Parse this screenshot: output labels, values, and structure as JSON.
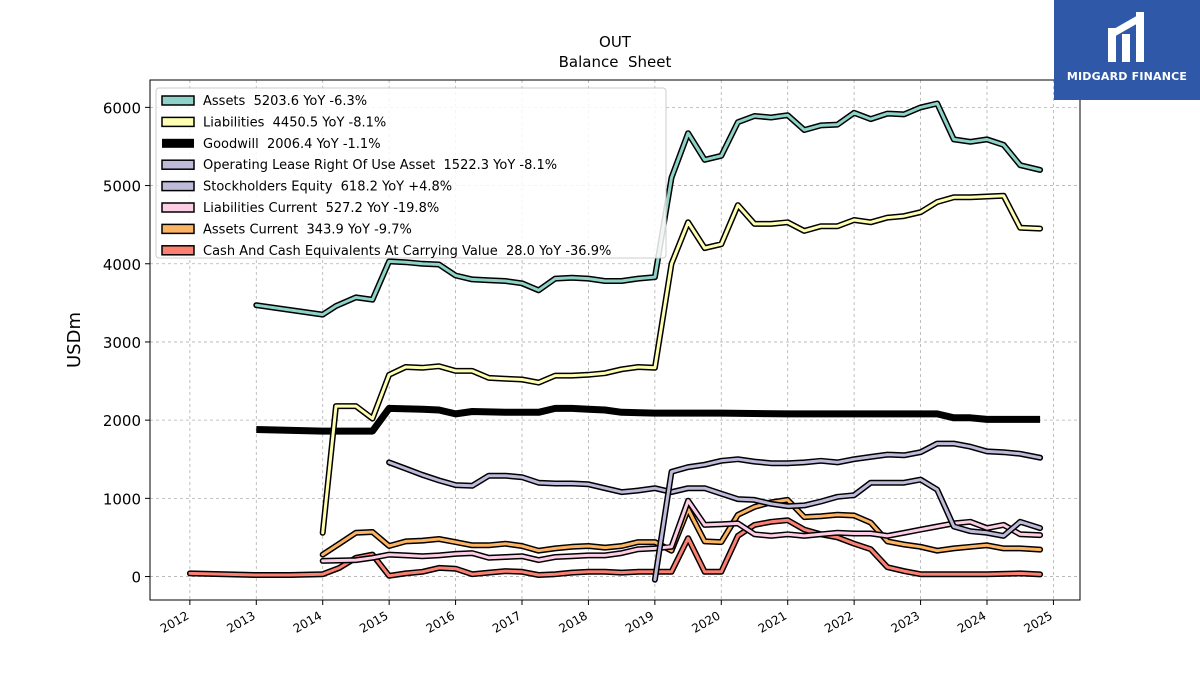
{
  "logo": {
    "text": "MIDGARD FINANCE"
  },
  "chart_data": {
    "type": "line",
    "title": "OUT",
    "subtitle": "Balance  Sheet",
    "ylabel": "USDm",
    "xlabel": "",
    "ylim": [
      -300,
      6350
    ],
    "xlim": [
      2011.4,
      2025.4
    ],
    "yticks": [
      0,
      1000,
      2000,
      3000,
      4000,
      5000,
      6000
    ],
    "xticks": [
      2012,
      2013,
      2014,
      2015,
      2016,
      2017,
      2018,
      2019,
      2020,
      2021,
      2022,
      2023,
      2024,
      2025
    ],
    "grid": true,
    "legend_position": "top-left",
    "series": [
      {
        "name": "Assets  5203.6 YoY -6.3%",
        "color": "#8dd3c7",
        "x": [
          2013.0,
          2014.0,
          2014.2,
          2014.5,
          2014.75,
          2015.0,
          2015.25,
          2015.5,
          2015.75,
          2016.0,
          2016.25,
          2016.5,
          2016.75,
          2017.0,
          2017.25,
          2017.5,
          2017.75,
          2018.0,
          2018.25,
          2018.5,
          2018.75,
          2019.0,
          2019.25,
          2019.5,
          2019.75,
          2020.0,
          2020.25,
          2020.5,
          2020.75,
          2021.0,
          2021.25,
          2021.5,
          2021.75,
          2022.0,
          2022.25,
          2022.5,
          2022.75,
          2023.0,
          2023.25,
          2023.5,
          2023.75,
          2024.0,
          2024.25,
          2024.5,
          2024.8
        ],
        "y": [
          3470,
          3350,
          3460,
          3570,
          3540,
          4030,
          4020,
          4000,
          3990,
          3850,
          3800,
          3790,
          3780,
          3750,
          3660,
          3810,
          3820,
          3810,
          3780,
          3780,
          3810,
          3830,
          5100,
          5670,
          5330,
          5380,
          5810,
          5890,
          5870,
          5900,
          5710,
          5770,
          5780,
          5930,
          5850,
          5920,
          5910,
          6000,
          6050,
          5590,
          5560,
          5590,
          5520,
          5260,
          5200
        ]
      },
      {
        "name": "Liabilities  4450.5 YoY -8.1%",
        "color": "#ffffb3",
        "x": [
          2014.0,
          2014.2,
          2014.5,
          2014.75,
          2015.0,
          2015.25,
          2015.5,
          2015.75,
          2016.0,
          2016.25,
          2016.5,
          2016.75,
          2017.0,
          2017.25,
          2017.5,
          2017.75,
          2018.0,
          2018.25,
          2018.5,
          2018.75,
          2019.0,
          2019.25,
          2019.5,
          2019.75,
          2020.0,
          2020.25,
          2020.5,
          2020.75,
          2021.0,
          2021.25,
          2021.5,
          2021.75,
          2022.0,
          2022.25,
          2022.5,
          2022.75,
          2023.0,
          2023.25,
          2023.5,
          2023.75,
          2024.0,
          2024.25,
          2024.5,
          2024.8
        ],
        "y": [
          560,
          2180,
          2180,
          2020,
          2580,
          2680,
          2670,
          2690,
          2630,
          2630,
          2540,
          2530,
          2520,
          2480,
          2570,
          2570,
          2580,
          2600,
          2650,
          2680,
          2670,
          4000,
          4530,
          4200,
          4250,
          4750,
          4510,
          4510,
          4530,
          4420,
          4480,
          4480,
          4560,
          4530,
          4590,
          4610,
          4660,
          4790,
          4850,
          4850,
          4860,
          4870,
          4460,
          4450
        ]
      },
      {
        "name": "Goodwill  2006.4 YoY -1.1%",
        "color": "#000000",
        "x": [
          2013.0,
          2014.0,
          2014.75,
          2015.0,
          2015.5,
          2015.75,
          2016.0,
          2016.25,
          2016.75,
          2017.25,
          2017.5,
          2017.75,
          2018.0,
          2018.25,
          2018.5,
          2019.0,
          2020.0,
          2021.0,
          2022.0,
          2023.25,
          2023.5,
          2023.75,
          2024.0,
          2024.8
        ],
        "y": [
          1880,
          1860,
          1860,
          2150,
          2140,
          2130,
          2080,
          2110,
          2100,
          2100,
          2150,
          2150,
          2140,
          2130,
          2100,
          2090,
          2090,
          2080,
          2080,
          2080,
          2030,
          2030,
          2010,
          2010
        ]
      },
      {
        "name": "Operating Lease Right Of Use Asset  1522.3 YoY -8.1%",
        "color": "#bebada",
        "x": [
          2019.0,
          2019.25,
          2019.5,
          2019.75,
          2020.0,
          2020.25,
          2020.5,
          2020.75,
          2021.0,
          2021.25,
          2021.5,
          2021.75,
          2022.0,
          2022.25,
          2022.5,
          2022.75,
          2023.0,
          2023.25,
          2023.5,
          2023.75,
          2024.0,
          2024.25,
          2024.5,
          2024.8
        ],
        "y": [
          -40,
          1340,
          1400,
          1430,
          1480,
          1500,
          1470,
          1450,
          1450,
          1460,
          1480,
          1460,
          1500,
          1530,
          1560,
          1550,
          1590,
          1700,
          1700,
          1660,
          1600,
          1590,
          1570,
          1520
        ]
      },
      {
        "name": "Stockholders Equity  618.2 YoY +4.8%",
        "color": "#bebada",
        "x": [
          2015.0,
          2015.25,
          2015.5,
          2015.75,
          2016.0,
          2016.25,
          2016.5,
          2016.75,
          2017.0,
          2017.25,
          2017.5,
          2017.75,
          2018.0,
          2018.25,
          2018.5,
          2018.75,
          2019.0,
          2019.25,
          2019.5,
          2019.75,
          2020.0,
          2020.25,
          2020.5,
          2020.75,
          2021.0,
          2021.25,
          2021.5,
          2021.75,
          2022.0,
          2022.25,
          2022.5,
          2022.75,
          2023.0,
          2023.25,
          2023.5,
          2023.75,
          2024.0,
          2024.25,
          2024.5,
          2024.8
        ],
        "y": [
          1460,
          1380,
          1300,
          1230,
          1170,
          1160,
          1290,
          1290,
          1270,
          1200,
          1190,
          1190,
          1180,
          1130,
          1080,
          1100,
          1130,
          1080,
          1130,
          1130,
          1060,
          990,
          980,
          930,
          900,
          910,
          960,
          1020,
          1040,
          1200,
          1200,
          1200,
          1240,
          1110,
          640,
          580,
          560,
          520,
          700,
          620
        ]
      },
      {
        "name": "Liabilities Current  527.2 YoY -19.8%",
        "color": "#fccde5",
        "x": [
          2014.0,
          2014.5,
          2014.75,
          2015.0,
          2015.25,
          2015.5,
          2015.75,
          2016.0,
          2016.25,
          2016.5,
          2016.75,
          2017.0,
          2017.25,
          2017.5,
          2017.75,
          2018.0,
          2018.25,
          2018.5,
          2018.75,
          2019.0,
          2019.25,
          2019.5,
          2019.75,
          2020.0,
          2020.25,
          2020.5,
          2020.75,
          2021.0,
          2021.25,
          2021.5,
          2021.75,
          2022.0,
          2022.25,
          2022.5,
          2022.75,
          2023.0,
          2023.25,
          2023.5,
          2023.75,
          2024.0,
          2024.25,
          2024.5,
          2024.8
        ],
        "y": [
          200,
          210,
          240,
          280,
          270,
          260,
          270,
          290,
          300,
          240,
          250,
          260,
          210,
          250,
          260,
          270,
          270,
          300,
          350,
          360,
          380,
          970,
          660,
          670,
          680,
          540,
          520,
          540,
          520,
          540,
          560,
          550,
          550,
          520,
          560,
          600,
          640,
          680,
          700,
          620,
          660,
          540,
          530
        ]
      },
      {
        "name": "Assets Current  343.9 YoY -9.7%",
        "color": "#fdb462",
        "x": [
          2014.0,
          2014.25,
          2014.5,
          2014.75,
          2015.0,
          2015.25,
          2015.5,
          2015.75,
          2016.0,
          2016.25,
          2016.5,
          2016.75,
          2017.0,
          2017.25,
          2017.5,
          2017.75,
          2018.0,
          2018.25,
          2018.5,
          2018.75,
          2019.0,
          2019.25,
          2019.5,
          2019.75,
          2020.0,
          2020.25,
          2020.5,
          2020.75,
          2021.0,
          2021.25,
          2021.5,
          2021.75,
          2022.0,
          2022.25,
          2022.5,
          2022.75,
          2023.0,
          2023.25,
          2023.5,
          2023.75,
          2024.0,
          2024.25,
          2024.5,
          2024.8
        ],
        "y": [
          280,
          420,
          560,
          570,
          390,
          450,
          460,
          480,
          440,
          400,
          400,
          420,
          390,
          330,
          360,
          380,
          390,
          370,
          390,
          440,
          440,
          330,
          860,
          450,
          440,
          790,
          890,
          950,
          980,
          760,
          770,
          790,
          780,
          690,
          450,
          410,
          380,
          330,
          360,
          380,
          400,
          360,
          360,
          344
        ]
      },
      {
        "name": "Cash And Cash Equivalents At Carrying Value  28.0 YoY -36.9%",
        "color": "#fb8072",
        "x": [
          2012.0,
          2013.0,
          2013.5,
          2014.0,
          2014.25,
          2014.5,
          2014.75,
          2015.0,
          2015.25,
          2015.5,
          2015.75,
          2016.0,
          2016.25,
          2016.5,
          2016.75,
          2017.0,
          2017.25,
          2017.5,
          2017.75,
          2018.0,
          2018.25,
          2018.5,
          2018.75,
          2019.0,
          2019.25,
          2019.5,
          2019.75,
          2020.0,
          2020.25,
          2020.5,
          2020.75,
          2021.0,
          2021.25,
          2021.5,
          2021.75,
          2022.0,
          2022.25,
          2022.5,
          2022.75,
          2023.0,
          2023.5,
          2024.0,
          2024.5,
          2024.8
        ],
        "y": [
          40,
          20,
          20,
          30,
          110,
          240,
          280,
          10,
          40,
          60,
          110,
          100,
          30,
          50,
          70,
          60,
          20,
          30,
          50,
          60,
          60,
          50,
          60,
          60,
          60,
          490,
          60,
          60,
          520,
          660,
          700,
          720,
          600,
          540,
          500,
          420,
          350,
          120,
          70,
          30,
          30,
          30,
          40,
          28
        ]
      }
    ]
  }
}
